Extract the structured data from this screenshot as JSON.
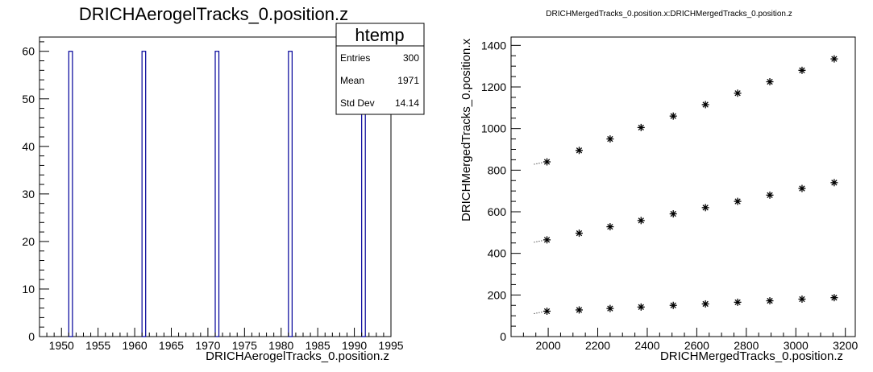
{
  "chart_data": [
    {
      "type": "bar",
      "title": "DRICHAerogelTracks_0.position.z",
      "xlabel": "DRICHAerogelTracks_0.position.z",
      "ylabel": "",
      "xlim": [
        1947,
        1995
      ],
      "ylim": [
        0,
        63
      ],
      "x_ticks": [
        1950,
        1955,
        1960,
        1965,
        1970,
        1975,
        1980,
        1985,
        1990,
        1995
      ],
      "y_ticks": [
        0,
        10,
        20,
        30,
        40,
        50,
        60
      ],
      "bin_width": 0.5,
      "bins": [
        {
          "x": 1951,
          "value": 60
        },
        {
          "x": 1961,
          "value": 60
        },
        {
          "x": 1971,
          "value": 60
        },
        {
          "x": 1981,
          "value": 60
        },
        {
          "x": 1991,
          "value": 60
        }
      ],
      "line_color": "#000099",
      "stats_box": {
        "title": "htemp",
        "rows": [
          {
            "label": "Entries",
            "value": "300"
          },
          {
            "label": "Mean",
            "value": "1971"
          },
          {
            "label": "Std Dev",
            "value": "14.14"
          }
        ]
      }
    },
    {
      "type": "scatter",
      "title": "DRICHMergedTracks_0.position.x:DRICHMergedTracks_0.position.z",
      "xlabel": "DRICHMergedTracks_0.position.z",
      "ylabel": "DRICHMergedTracks_0.position.x",
      "xlim": [
        1850,
        3240
      ],
      "ylim": [
        0,
        1440
      ],
      "x_ticks": [
        2000,
        2200,
        2400,
        2600,
        2800,
        3000,
        3200
      ],
      "y_ticks": [
        0,
        200,
        400,
        600,
        800,
        1000,
        1200,
        1400
      ],
      "series": [
        {
          "x": [
            1995,
            2125,
            2250,
            2375,
            2505,
            2635,
            2765,
            2895,
            3025,
            3155
          ],
          "y": [
            840,
            895,
            950,
            1005,
            1060,
            1115,
            1170,
            1225,
            1280,
            1335
          ]
        },
        {
          "x": [
            1995,
            2125,
            2250,
            2375,
            2505,
            2635,
            2765,
            2895,
            3025,
            3155
          ],
          "y": [
            465,
            497,
            528,
            558,
            590,
            620,
            650,
            680,
            712,
            740
          ]
        },
        {
          "x": [
            1995,
            2125,
            2250,
            2375,
            2505,
            2635,
            2765,
            2895,
            3025,
            3155
          ],
          "y": [
            122,
            128,
            135,
            142,
            150,
            157,
            165,
            172,
            180,
            187
          ]
        }
      ]
    }
  ]
}
